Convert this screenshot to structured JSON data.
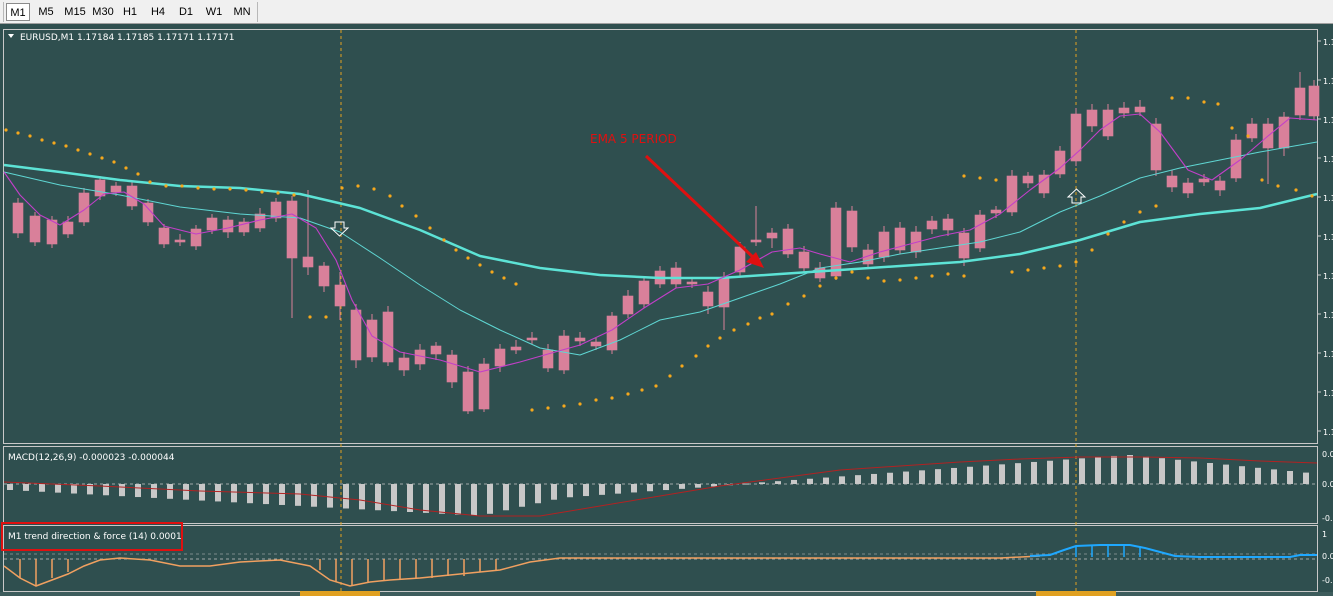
{
  "toolbar": {
    "timeframes": [
      {
        "label": "M1",
        "active": true
      },
      {
        "label": "M5",
        "active": false
      },
      {
        "label": "M15",
        "active": false
      },
      {
        "label": "M30",
        "active": false
      },
      {
        "label": "H1",
        "active": false
      },
      {
        "label": "H4",
        "active": false
      },
      {
        "label": "D1",
        "active": false
      },
      {
        "label": "W1",
        "active": false
      },
      {
        "label": "MN",
        "active": false
      }
    ]
  },
  "main_chart": {
    "title": "EURUSD,M1  1.17184 1.17185 1.17171 1.17171",
    "annotation": "EMA 5 PERIOD",
    "price_axis_labels": [
      "1.1",
      "1.1",
      "1.1",
      "1.1",
      "1.1",
      "1.1",
      "1.1",
      "1.1",
      "1.1",
      "1.1",
      "1.1"
    ]
  },
  "macd_panel": {
    "title": "MACD(12,26,9) -0.000023 -0.000044",
    "axis_labels": [
      "0.0",
      "0.0",
      "-0.0"
    ]
  },
  "trend_panel": {
    "title": "M1 trend direction & force (14) 0.0001",
    "axis_labels": [
      "1",
      "0.0",
      "-0.0"
    ]
  },
  "colors": {
    "background": "#2f4f4f",
    "bull_candle": "#0b8a1f",
    "bear_candle": "#d9809a",
    "ema_slow": "#5de3d6",
    "ema_mid": "#5fd6d3",
    "ema_fast": "#c23fc9",
    "sar_dots": "#f6a81c",
    "macd_hist": "#c8c8c8",
    "macd_signal": "#b22222",
    "trend_up": "#1fa8ff",
    "trend_down": "#f0a060",
    "annotation": "#e01010"
  },
  "chart_data": {
    "type": "candlestick",
    "symbol": "EURUSD",
    "timeframe": "M1",
    "last_ohlc": {
      "open": 1.17184,
      "high": 1.17185,
      "low": 1.17171,
      "close": 1.17171
    },
    "indicators": [
      "EMA",
      "EMA",
      "EMA 5 PERIOD",
      "Parabolic SAR",
      "MACD(12,26,9)",
      "M1 trend direction & force (14)"
    ],
    "macd": {
      "main": -2.3e-05,
      "signal": -4.4e-05
    },
    "trend_force": 0.0001
  }
}
